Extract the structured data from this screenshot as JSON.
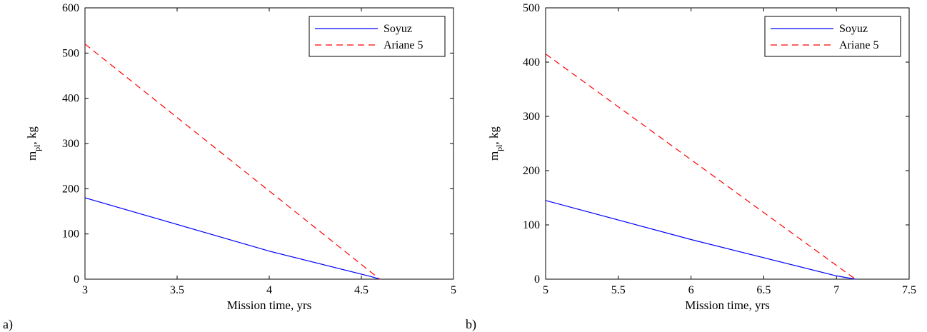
{
  "chart_data": [
    {
      "type": "line",
      "panel_label": "a)",
      "xlabel": "Mission time, yrs",
      "ylabel_main": "m",
      "ylabel_sub": "pl",
      "ylabel_rest": ", kg",
      "xlim": [
        3,
        5
      ],
      "ylim": [
        0,
        600
      ],
      "xticks": [
        "3",
        "3.5",
        "4",
        "4.5",
        "5"
      ],
      "yticks": [
        "0",
        "100",
        "200",
        "300",
        "400",
        "500",
        "600"
      ],
      "legend_position": "top-right",
      "series": [
        {
          "name": "Soyuz",
          "color": "#0000ff",
          "style": "solid",
          "x": [
            3,
            4,
            4.55,
            4.6
          ],
          "y": [
            180,
            62,
            6,
            0
          ]
        },
        {
          "name": "Ariane 5",
          "color": "#ff0000",
          "style": "dashed",
          "x": [
            3,
            4.6
          ],
          "y": [
            520,
            0
          ]
        }
      ]
    },
    {
      "type": "line",
      "panel_label": "b)",
      "xlabel": "Mission time, yrs",
      "ylabel_main": "m",
      "ylabel_sub": "pl",
      "ylabel_rest": ", kg",
      "xlim": [
        5,
        7.5
      ],
      "ylim": [
        0,
        500
      ],
      "xticks": [
        "5",
        "5.5",
        "6",
        "6.5",
        "7",
        "7.5"
      ],
      "yticks": [
        "0",
        "100",
        "200",
        "300",
        "400",
        "500"
      ],
      "legend_position": "top-right",
      "series": [
        {
          "name": "Soyuz",
          "color": "#0000ff",
          "style": "solid",
          "x": [
            5,
            6,
            7,
            7.13
          ],
          "y": [
            145,
            73,
            6,
            0
          ]
        },
        {
          "name": "Ariane 5",
          "color": "#ff0000",
          "style": "dashed",
          "x": [
            5,
            7.13
          ],
          "y": [
            415,
            0
          ]
        }
      ]
    }
  ]
}
